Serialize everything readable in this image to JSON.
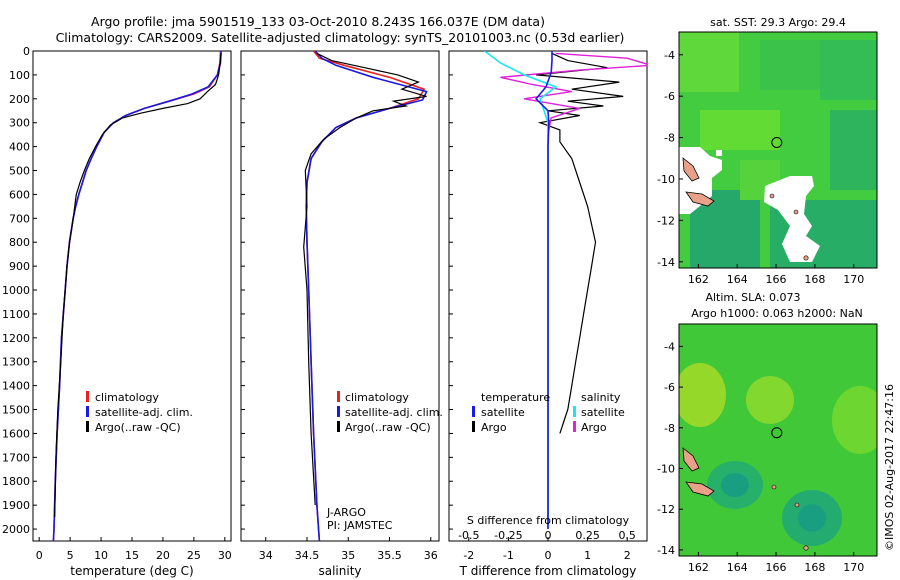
{
  "header": {
    "line1": "Argo profile: jma 5901519_133 03-Oct-2010 8.243S 166.037E (DM data)",
    "line2": "Climatology: CARS2009. Satellite-adjusted climatology: synTS_20101003.nc (0.53d earlier)"
  },
  "footer": {
    "credit": "©IMOS 02-Aug-2017 22:47:16",
    "owner_line1": "J-ARGO",
    "owner_line2": "PI: JAMSTEC"
  },
  "colors": {
    "climatology": "#e8231e",
    "satellite": "#1a1ae6",
    "argo": "#000000",
    "salinity_sat": "#18e6f0",
    "salinity_argo": "#e020d8",
    "map_green": "#33cc33",
    "land": "#e8a088"
  },
  "chart_data": [
    {
      "type": "line",
      "title": "",
      "xlabel": "temperature (deg C)",
      "ylabel": "",
      "xlim": [
        -1,
        31
      ],
      "ylim": [
        2050,
        0
      ],
      "xticks": [
        "0",
        "5",
        "10",
        "15",
        "20",
        "25",
        "30"
      ],
      "yticks": [
        "0",
        "100",
        "200",
        "300",
        "400",
        "500",
        "600",
        "700",
        "800",
        "900",
        "1000",
        "1100",
        "1200",
        "1300",
        "1400",
        "1500",
        "1600",
        "1700",
        "1800",
        "1900",
        "2000"
      ],
      "legend": [
        "climatology",
        "satellite-adj. clim.",
        "Argo(..raw -QC)"
      ],
      "series": [
        {
          "name": "climatology",
          "x": [
            29.3,
            29.2,
            28.8,
            27.5,
            25,
            21,
            17,
            14,
            12,
            10.5,
            9.3,
            8.4,
            7.6,
            7,
            6.4,
            5.9,
            5.5,
            4.9,
            4.5,
            4.2,
            3.6,
            3.3,
            2.9,
            2.6,
            2.4,
            2.3
          ],
          "depth": [
            0,
            50,
            100,
            150,
            180,
            210,
            240,
            270,
            300,
            340,
            400,
            450,
            500,
            550,
            600,
            650,
            700,
            800,
            900,
            1000,
            1200,
            1400,
            1600,
            1800,
            2000,
            2050
          ]
        },
        {
          "name": "satellite-adj. clim.",
          "x": [
            29.4,
            29.3,
            28.8,
            27.3,
            24.7,
            21,
            17,
            14,
            12,
            10.5,
            9.3,
            8.4,
            7.6,
            7,
            6.4,
            5.9,
            5.5,
            4.9,
            4.5,
            4.2,
            3.6,
            3.3,
            2.9,
            2.6,
            2.4,
            2.3
          ],
          "depth": [
            0,
            50,
            100,
            150,
            180,
            210,
            240,
            270,
            300,
            340,
            400,
            450,
            500,
            550,
            600,
            650,
            700,
            800,
            900,
            1000,
            1200,
            1400,
            1600,
            1800,
            2000,
            2050
          ]
        },
        {
          "name": "Argo(..raw -QC)",
          "x": [
            29.4,
            29.2,
            29,
            28.5,
            27.2,
            26,
            24,
            20,
            16.5,
            13.5,
            11.5,
            10.2,
            9.1,
            8.1,
            7.3,
            6.6,
            6,
            5.5,
            4.9,
            4.5,
            4.2,
            3.9,
            3.5,
            3,
            2.7,
            2.5
          ],
          "depth": [
            10,
            60,
            100,
            140,
            170,
            200,
            220,
            240,
            260,
            280,
            310,
            350,
            400,
            450,
            500,
            550,
            600,
            700,
            800,
            900,
            1000,
            1100,
            1300,
            1500,
            1700,
            1950
          ]
        }
      ]
    },
    {
      "type": "line",
      "title": "",
      "xlabel": "salinity",
      "ylabel": "",
      "xlim": [
        33.7,
        36.1
      ],
      "ylim": [
        2050,
        0
      ],
      "xticks": [
        "34",
        "34.5",
        "35",
        "35.5",
        "36"
      ],
      "legend": [
        "climatology",
        "satellite-adj. clim.",
        "Argo(..raw -QC)"
      ],
      "series": [
        {
          "name": "climatology",
          "x": [
            34.58,
            34.65,
            34.95,
            35.5,
            35.92,
            35.85,
            35.5,
            35.1,
            34.85,
            34.68,
            34.55,
            34.5,
            34.49,
            34.5,
            34.52,
            34.55,
            34.58,
            34.62,
            34.65
          ],
          "depth": [
            0,
            30,
            60,
            110,
            160,
            200,
            240,
            280,
            320,
            380,
            450,
            550,
            650,
            800,
            1000,
            1300,
            1600,
            1900,
            2050
          ]
        },
        {
          "name": "satellite-adj. clim.",
          "x": [
            34.6,
            34.68,
            34.85,
            35.3,
            35.95,
            35.9,
            35.5,
            35.1,
            34.85,
            34.68,
            34.55,
            34.5,
            34.49,
            34.5,
            34.52,
            34.55,
            34.58,
            34.62,
            34.65
          ],
          "depth": [
            0,
            30,
            60,
            110,
            170,
            205,
            240,
            280,
            320,
            380,
            450,
            550,
            650,
            800,
            1000,
            1300,
            1600,
            1900,
            2050
          ]
        },
        {
          "name": "Argo(..raw -QC)",
          "x": [
            34.62,
            34.8,
            35.2,
            35.6,
            35.85,
            35.65,
            35.95,
            35.55,
            35.7,
            35.3,
            35.1,
            34.9,
            34.7,
            34.55,
            34.48,
            34.5,
            34.46,
            34.5,
            34.52,
            34.55,
            34.6
          ],
          "depth": [
            10,
            40,
            70,
            100,
            130,
            160,
            190,
            210,
            230,
            250,
            280,
            320,
            370,
            430,
            500,
            650,
            820,
            1000,
            1300,
            1600,
            1900
          ]
        }
      ]
    },
    {
      "type": "line",
      "title": "",
      "xlabel": "T difference from climatology",
      "xlabel_top": "S difference from climatology",
      "xlim": [
        -2.5,
        2.5
      ],
      "ylim": [
        2050,
        0
      ],
      "xticks": [
        "-2",
        "-1",
        "0",
        "1",
        "2"
      ],
      "xticks_s": [
        "-0.5",
        "-0.25",
        "0",
        "0.25",
        "0.5"
      ],
      "legend_left_title": "temperature",
      "legend_right_title": "salinity",
      "legend": [
        "satellite",
        "Argo",
        "satellite",
        "Argo"
      ],
      "series": [
        {
          "name": "temperature satellite",
          "x": [
            0.1,
            0.1,
            0.08,
            -0.05,
            -0.3,
            0,
            0.02,
            0,
            0,
            0,
            0,
            0,
            0
          ],
          "depth": [
            0,
            40,
            90,
            150,
            200,
            250,
            300,
            400,
            600,
            900,
            1300,
            1700,
            2000
          ]
        },
        {
          "name": "temperature Argo",
          "x": [
            0.1,
            0.5,
            1.5,
            -0.3,
            1.8,
            0.6,
            1.9,
            0.5,
            1.4,
            0,
            0.8,
            -0.2,
            0.3,
            0.3,
            0.6,
            0.8,
            1,
            1.2,
            1.1,
            1,
            0.9,
            0.8,
            0.7,
            0.6,
            0.5,
            0.4,
            0.3
          ],
          "depth": [
            10,
            40,
            70,
            100,
            130,
            160,
            190,
            210,
            230,
            250,
            270,
            300,
            330,
            380,
            450,
            550,
            650,
            800,
            900,
            1000,
            1100,
            1200,
            1300,
            1400,
            1500,
            1550,
            1600
          ]
        },
        {
          "name": "salinity satellite",
          "x": [
            -0.4,
            -0.3,
            -0.15,
            0.05,
            -0.05,
            0,
            0,
            0,
            0,
            0,
            0
          ],
          "depth": [
            0,
            50,
            100,
            150,
            200,
            300,
            500,
            800,
            1200,
            1600,
            2000
          ]
        },
        {
          "name": "salinity Argo",
          "x": [
            0.05,
            0.5,
            0.65,
            0.2,
            -0.3,
            -0.1,
            0.15,
            -0.15,
            0.2,
            0.02,
            0,
            0,
            0,
            0,
            0
          ],
          "depth": [
            10,
            30,
            60,
            80,
            110,
            140,
            170,
            200,
            240,
            280,
            350,
            500,
            900,
            1400,
            2000
          ]
        }
      ]
    },
    {
      "type": "heatmap",
      "title": "sat. SST: 29.3 Argo: 29.4",
      "xlim": [
        161,
        171.2
      ],
      "ylim": [
        -14.3,
        -2.9
      ],
      "xticks": [
        "162",
        "164",
        "166",
        "168",
        "170"
      ],
      "yticks": [
        "-4",
        "-6",
        "-8",
        "-10",
        "-12",
        "-14"
      ],
      "marker": {
        "lon": 166.04,
        "lat": -8.24
      }
    },
    {
      "type": "heatmap",
      "title": "Altim. SLA: 0.073",
      "subtitle": "Argo h1000: 0.063 h2000: NaN",
      "xlim": [
        161,
        171.2
      ],
      "ylim": [
        -14.3,
        -2.9
      ],
      "xticks": [
        "162",
        "164",
        "166",
        "168",
        "170"
      ],
      "yticks": [
        "-4",
        "-6",
        "-8",
        "-10",
        "-12",
        "-14"
      ],
      "marker": {
        "lon": 166.04,
        "lat": -8.24
      }
    }
  ]
}
